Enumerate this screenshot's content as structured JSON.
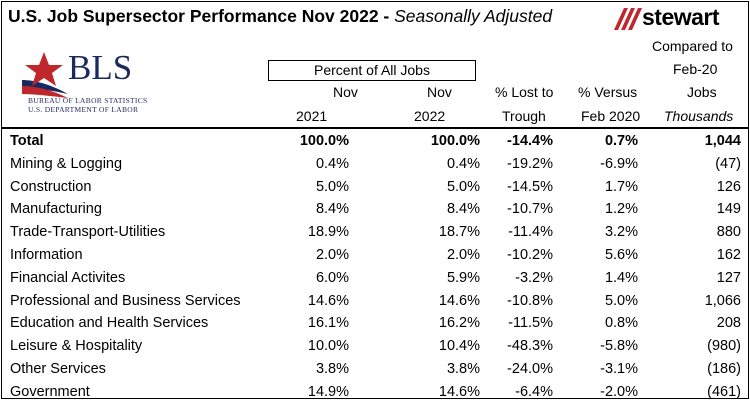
{
  "title": {
    "main": "U.S. Job Supersector Performance Nov 2022 - ",
    "italic": "Seasonally Adjusted"
  },
  "logos": {
    "stewart": "stewart",
    "bls_name": "BLS",
    "bls_line1": "BUREAU OF LABOR STATISTICS",
    "bls_line2": "U.S. DEPARTMENT OF LABOR"
  },
  "header": {
    "percent_of_all_jobs": "Percent of All Jobs",
    "nov2021_a": "Nov",
    "nov2021_b": "2021",
    "nov2022_a": "Nov",
    "nov2022_b": "2022",
    "lost_a": "% Lost to",
    "lost_b": "Trough",
    "versus_a": "% Versus",
    "versus_b": "Feb 2020",
    "compared_a": "Compared to",
    "compared_b": "Feb-20",
    "compared_c": "Jobs",
    "compared_d": "Thousands"
  },
  "rows": [
    {
      "name": "Total",
      "nov2021": "100.0%",
      "nov2022": "100.0%",
      "lost": "-14.4%",
      "versus": "0.7%",
      "jobs": "1,044"
    },
    {
      "name": "Mining & Logging",
      "nov2021": "0.4%",
      "nov2022": "0.4%",
      "lost": "-19.2%",
      "versus": "-6.9%",
      "jobs": "(47)"
    },
    {
      "name": "Construction",
      "nov2021": "5.0%",
      "nov2022": "5.0%",
      "lost": "-14.5%",
      "versus": "1.7%",
      "jobs": "126"
    },
    {
      "name": "Manufacturing",
      "nov2021": "8.4%",
      "nov2022": "8.4%",
      "lost": "-10.7%",
      "versus": "1.2%",
      "jobs": "149"
    },
    {
      "name": "Trade-Transport-Utilities",
      "nov2021": "18.9%",
      "nov2022": "18.7%",
      "lost": "-11.4%",
      "versus": "3.2%",
      "jobs": "880"
    },
    {
      "name": "Information",
      "nov2021": "2.0%",
      "nov2022": "2.0%",
      "lost": "-10.2%",
      "versus": "5.6%",
      "jobs": "162"
    },
    {
      "name": "Financial Activites",
      "nov2021": "6.0%",
      "nov2022": "5.9%",
      "lost": "-3.2%",
      "versus": "1.4%",
      "jobs": "127"
    },
    {
      "name": "Professional and Business Services",
      "nov2021": "14.6%",
      "nov2022": "14.6%",
      "lost": "-10.8%",
      "versus": "5.0%",
      "jobs": "1,066"
    },
    {
      "name": "Education and Health Services",
      "nov2021": "16.1%",
      "nov2022": "16.2%",
      "lost": "-11.5%",
      "versus": "0.8%",
      "jobs": "208"
    },
    {
      "name": "Leisure & Hospitality",
      "nov2021": "10.0%",
      "nov2022": "10.4%",
      "lost": "-48.3%",
      "versus": "-5.8%",
      "jobs": "(980)"
    },
    {
      "name": "Other Services",
      "nov2021": "3.8%",
      "nov2022": "3.8%",
      "lost": "-24.0%",
      "versus": "-3.1%",
      "jobs": "(186)"
    },
    {
      "name": "Government",
      "nov2021": "14.9%",
      "nov2022": "14.6%",
      "lost": "-6.4%",
      "versus": "-2.0%",
      "jobs": "(461)"
    }
  ],
  "colors": {
    "stewart_red": "#c0272d",
    "bls_navy": "#1b2a5e",
    "bls_red": "#c0272d"
  }
}
